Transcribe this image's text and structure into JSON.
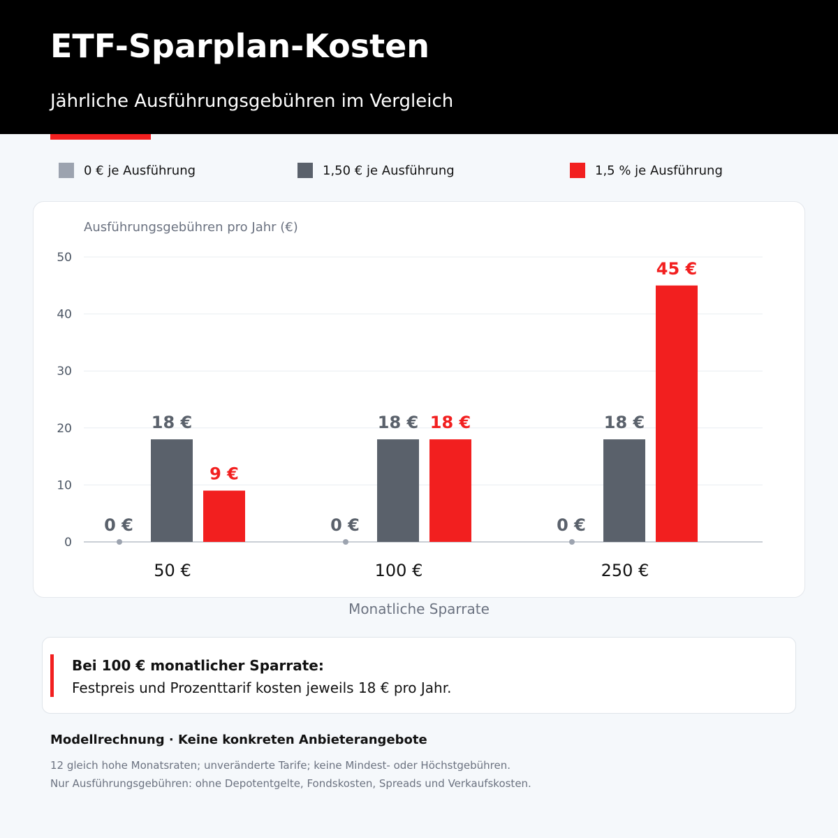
{
  "header": {
    "title": "ETF-Sparplan-Kosten",
    "subtitle": "Jährliche Ausführungsgebühren im Vergleich"
  },
  "colors": {
    "accent": "#f21f1f",
    "zero_fee": "#9ca3af",
    "fixed_fee": "#5a616b",
    "percent_fee": "#f21f1f"
  },
  "legend": [
    {
      "label": "0 € je Ausführung",
      "color": "#9ca3af"
    },
    {
      "label": "1,50 € je Ausführung",
      "color": "#5a616b"
    },
    {
      "label": "1,5 % je Ausführung",
      "color": "#f21f1f"
    }
  ],
  "chart_data": {
    "type": "bar",
    "ylabel": "Ausführungsgebühren pro Jahr (€)",
    "xlabel": "Monatliche Sparrate",
    "categories": [
      "50 €",
      "100 €",
      "250 €"
    ],
    "ylim": [
      0,
      50
    ],
    "yticks": [
      0,
      10,
      20,
      30,
      40,
      50
    ],
    "grid": true,
    "legend_position": "top",
    "series": [
      {
        "name": "0 € je Ausführung",
        "color": "#9ca3af",
        "values": [
          0,
          0,
          0
        ],
        "labels": [
          "0 €",
          "0 €",
          "0 €"
        ]
      },
      {
        "name": "1,50 € je Ausführung",
        "color": "#5a616b",
        "values": [
          18,
          18,
          18
        ],
        "labels": [
          "18 €",
          "18 €",
          "18 €"
        ]
      },
      {
        "name": "1,5 % je Ausführung",
        "color": "#f21f1f",
        "values": [
          9,
          18,
          45
        ],
        "labels": [
          "9 €",
          "18 €",
          "45 €"
        ]
      }
    ]
  },
  "note": {
    "heading": "Bei 100 € monatlicher Sparrate:",
    "text": "Festpreis und Prozenttarif kosten jeweils 18 € pro Jahr."
  },
  "footer": {
    "title": "Modellrechnung · Keine konkreten Anbieterangebote",
    "line1": "12 gleich hohe Monatsraten; unveränderte Tarife; keine Mindest- oder Höchstgebühren.",
    "line2": "Nur Ausführungsgebühren: ohne Depotentgelte, Fondskosten, Spreads und Verkaufskosten."
  }
}
